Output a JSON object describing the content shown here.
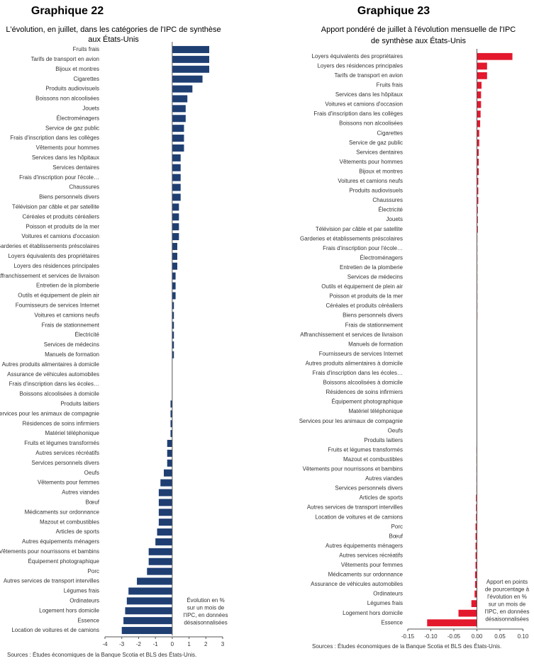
{
  "chart_data": [
    {
      "type": "bar",
      "orientation": "horizontal",
      "title": "Graphique 22",
      "subtitle": [
        "L'évolution, en juillet, dans les catégories de l'IPC de synthèse",
        "aux États-Unis"
      ],
      "categories": [
        "Fruits frais",
        "Tarifs de transport en avion",
        "Bijoux et montres",
        "Cigarettes",
        "Produits audiovisuels",
        "Boissons non alcoolisées",
        "Jouets",
        "Électroménagers",
        "Service de gaz public",
        "Frais d'inscription dans les collèges",
        "Vêtements pour hommes",
        "Services dans les hôpitaux",
        "Services dentaires",
        "Frais d'inscription pour l'école…",
        "Chaussures",
        "Biens personnels divers",
        "Télévision par câble et par satellite",
        "Céréales et produits céréaliers",
        "Poisson et produits de la mer",
        "Voitures et camions d'occasion",
        "Garderies et établissements préscolaires",
        "Loyers équivalents des propriétaires",
        "Loyers des résidences principales",
        "Affranchissement et services de livraison",
        "Entretien de la plomberie",
        "Outils et équipement de plein air",
        "Fournisseurs de services Internet",
        "Voitures et camions neufs",
        "Frais de stationnement",
        "Électricité",
        "Services de médecins",
        "Manuels de formation",
        "Autres produits alimentaires à domicile",
        "Assurance de véhicules automobiles",
        "Frais d'inscription dans les écoles…",
        "Boissons alcoolisées à domicile",
        "Produits laitiers",
        "Services pour les animaux de compagnie",
        "Résidences de soins infirmiers",
        "Matériel téléphonique",
        "Fruits et légumes transformés",
        "Autres services récréatifs",
        "Services personnels divers",
        "Oeufs",
        "Vêtements pour femmes",
        "Autres viandes",
        "Bœuf",
        "Médicaments sur ordonnance",
        "Mazout et combustibles",
        "Articles de sports",
        "Autres équipements ménagers",
        "Vêtements pour nourrissons et bambins",
        "Équipement photographique",
        "Porc",
        "Autres services de transport intervilles",
        "Légumes frais",
        "Ordinateurs",
        "Logement hors domicile",
        "Essence",
        "Location de voitures et de camions"
      ],
      "values": [
        2.2,
        2.2,
        2.2,
        1.8,
        1.2,
        0.9,
        0.8,
        0.8,
        0.7,
        0.7,
        0.7,
        0.5,
        0.5,
        0.5,
        0.5,
        0.5,
        0.4,
        0.4,
        0.4,
        0.4,
        0.3,
        0.3,
        0.3,
        0.2,
        0.2,
        0.2,
        0.1,
        0.1,
        0.1,
        0.1,
        0.1,
        0.1,
        0.0,
        0.0,
        0.0,
        0.0,
        -0.1,
        -0.1,
        -0.1,
        -0.1,
        -0.3,
        -0.3,
        -0.3,
        -0.5,
        -0.7,
        -0.8,
        -0.8,
        -0.8,
        -0.8,
        -0.9,
        -1.0,
        -1.4,
        -1.4,
        -1.5,
        -2.1,
        -2.6,
        -2.7,
        -2.8,
        -2.9,
        -3.0
      ],
      "color": "#1f3f73",
      "xlim": [
        -4,
        3
      ],
      "xticks": [
        -4,
        -3,
        -2,
        -1,
        0,
        1,
        2,
        3
      ],
      "annotation": [
        "Évolution en %",
        "sur un mois de",
        "l'IPC, en données",
        "désaisonnalisées"
      ],
      "source": "Sources : Études économiques de la Banque Scotia et BLS des États-Unis."
    },
    {
      "type": "bar",
      "orientation": "horizontal",
      "title": "Graphique 23",
      "subtitle": [
        "Apport pondéré de juillet à l'évolution mensuelle de l'IPC",
        "de synthèse aux États-Unis"
      ],
      "categories": [
        "Loyers équivalents des propriétaires",
        "Loyers des résidences principales",
        "Tarifs de transport en avion",
        "Fruits frais",
        "Services dans les hôpitaux",
        "Voitures et camions d'occasion",
        "Frais d'inscription dans les collèges",
        "Boissons non alcoolisées",
        "Cigarettes",
        "Service de gaz public",
        "Services dentaires",
        "Vêtements pour hommes",
        "Bijoux et montres",
        "Voitures et camions neufs",
        "Produits audiovisuels",
        "Chaussures",
        "Électricité",
        "Jouets",
        "Télévision par câble et par satellite",
        "Garderies et établissements préscolaires",
        "Frais d'inscription pour l'école…",
        "Électroménagers",
        "Entretien de la plomberie",
        "Services de médecins",
        "Outils et équipement de plein air",
        "Poisson et produits de la mer",
        "Céréales et produits céréaliers",
        "Biens personnels divers",
        "Frais de stationnement",
        "Affranchissement et services de livraison",
        "Manuels de formation",
        "Fournisseurs de services Internet",
        "Autres produits alimentaires à domicile",
        "Frais d'inscription dans les écoles…",
        "Boissons alcoolisées à domicile",
        "Résidences de soins infirmiers",
        "Équipement photographique",
        "Matériel téléphonique",
        "Services pour les animaux de compagnie",
        "Oeufs",
        "Produits laitiers",
        "Fruits et légumes transformés",
        "Mazout et combustibles",
        "Vêtements pour nourrissons et bambins",
        "Autres viandes",
        "Services personnels divers",
        "Articles de sports",
        "Autres services de transport intervilles",
        "Location de voitures et de camions",
        "Porc",
        "Bœuf",
        "Autres équipements ménagers",
        "Autres services récréatifs",
        "Vêtements pour femmes",
        "Médicaments sur ordonnance",
        "Assurance de véhicules automobiles",
        "Ordinateurs",
        "Légumes frais",
        "Logement hors domicile",
        "Essence"
      ],
      "values": [
        0.077,
        0.022,
        0.022,
        0.01,
        0.009,
        0.009,
        0.008,
        0.007,
        0.005,
        0.005,
        0.004,
        0.004,
        0.004,
        0.003,
        0.003,
        0.003,
        0.002,
        0.002,
        0.002,
        0.001,
        0.001,
        0.001,
        0.001,
        0.001,
        0.001,
        0.001,
        0.001,
        0.001,
        0.0,
        0.0,
        0.0,
        0.0,
        0.0,
        0.0,
        0.0,
        0.0,
        0.0,
        0.0,
        0.0,
        0.0,
        0.0,
        -0.001,
        -0.001,
        -0.001,
        -0.001,
        -0.001,
        -0.002,
        -0.002,
        -0.002,
        -0.003,
        -0.003,
        -0.003,
        -0.003,
        -0.003,
        -0.004,
        -0.004,
        -0.005,
        -0.012,
        -0.04,
        -0.108
      ],
      "color": "#e3182d",
      "xlim": [
        -0.15,
        0.1
      ],
      "xticks": [
        -0.15,
        {
          "value": -0.1,
          "label": "-0.10"
        },
        -0.05,
        {
          "value": 0,
          "label": "0.00"
        },
        0.05,
        {
          "value": 0.1,
          "label": "0.10"
        }
      ],
      "annotation": [
        "Apport en points",
        "de pourcentage à",
        "l'évolution en %",
        "sur un mois de",
        "l'IPC, en données",
        "désaisonnalisées"
      ],
      "source": "Sources : Études économiques de la Banque Scotia et BLS des États-Unis."
    }
  ]
}
